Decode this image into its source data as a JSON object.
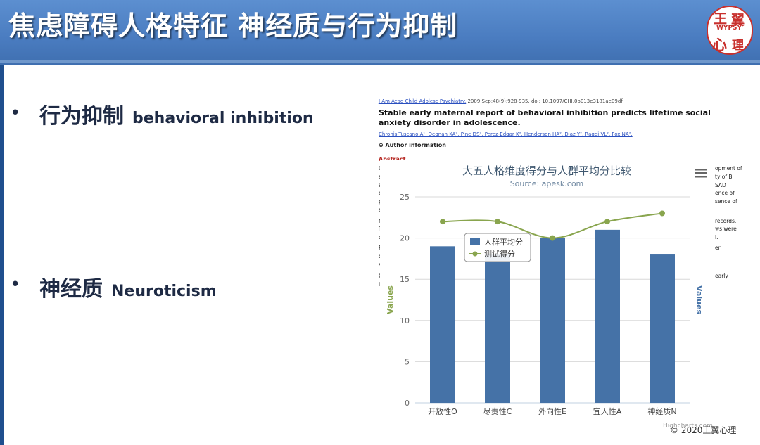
{
  "slide": {
    "title": "焦虑障碍人格特征 神经质与行为抑制",
    "logo": {
      "text": "WYPSY",
      "chars": [
        "王",
        "翼",
        "心",
        "理"
      ]
    }
  },
  "bullets": [
    {
      "marker": "•",
      "zh": "行为抑制",
      "en": "behavioral inhibition"
    },
    {
      "marker": "•",
      "zh": "神经质",
      "en": "Neuroticism"
    }
  ],
  "paper": {
    "journal_link": "J Am Acad Child Adolesc Psychiatry.",
    "citation": " 2009 Sep;48(9):928-935. doi: 10.1097/CHI.0b013e3181ae09df.",
    "title": "Stable early maternal report of behavioral inhibition predicts lifetime social anxiety disorder in adolescence.",
    "authors": "Chronis-Tuscano A¹, Degnan KA², Pine DS², Perez-Edgar K², Henderson HA², Diaz Y², Raggi VL², Fox NA².",
    "author_info": "⊕ Author information",
    "abstract_label": "Abstract",
    "right_fragments": [
      "opment of",
      "ty of BI",
      "SAD",
      "ence of",
      "sence of",
      "records.",
      "ws were",
      "l.",
      "er",
      "early"
    ],
    "left_fragments": [
      "O",
      "a",
      "a",
      "c",
      "p",
      "a",
      "M",
      "T",
      "c",
      "R",
      "d",
      "a",
      "C",
      "ic"
    ]
  },
  "chart_data": {
    "type": "bar",
    "title": "大五人格维度得分与人群平均分比较",
    "subtitle": "Source: apesk.com",
    "categories": [
      "开放性O",
      "尽责性C",
      "外向性E",
      "宜人性A",
      "神经质N"
    ],
    "series": [
      {
        "name": "人群平均分",
        "type": "bar",
        "color": "#4572a7",
        "values": [
          19,
          18,
          20,
          21,
          18
        ]
      },
      {
        "name": "测试得分",
        "type": "line",
        "color": "#89a54e",
        "values": [
          22,
          22,
          20,
          22,
          23
        ]
      }
    ],
    "ylabel_left": "Values",
    "ylabel_right": "Values",
    "ylim": [
      0,
      25
    ],
    "yticks": [
      0,
      5,
      10,
      15,
      20,
      25
    ],
    "grid": true,
    "legend": "inside-center",
    "credit": "Highcharts.com",
    "menu_icon": "hamburger-menu-icon"
  },
  "footer": {
    "copyright": "© 2020王翼心理"
  }
}
